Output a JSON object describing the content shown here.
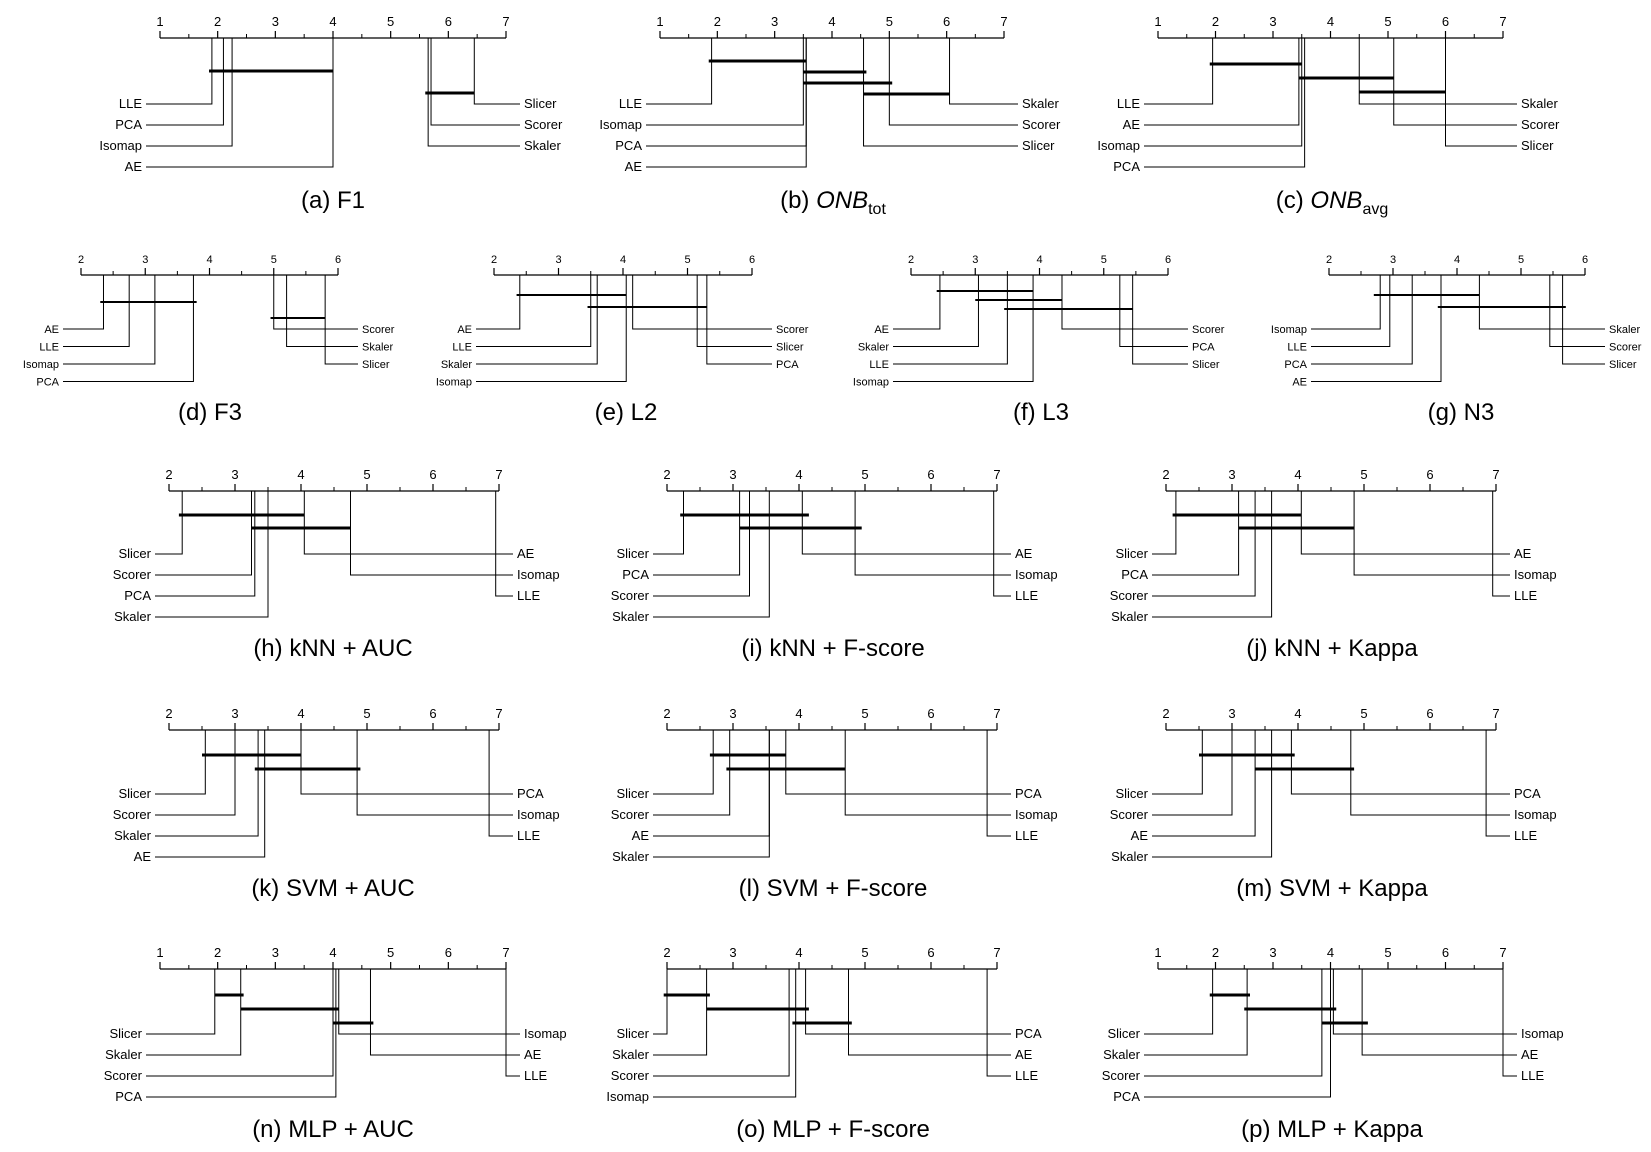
{
  "chart_data": [
    {
      "type": "cd_diagram",
      "caption": "(a) F1",
      "axis": {
        "min": 1,
        "max": 7,
        "ticks": [
          1,
          2,
          3,
          4,
          5,
          6,
          7
        ]
      },
      "left": [
        {
          "name": "LLE",
          "rank": 1.9
        },
        {
          "name": "PCA",
          "rank": 2.1
        },
        {
          "name": "Isomap",
          "rank": 2.25
        },
        {
          "name": "AE",
          "rank": 4.0
        }
      ],
      "right": [
        {
          "name": "Slicer",
          "rank": 6.45
        },
        {
          "name": "Scorer",
          "rank": 5.7
        },
        {
          "name": "Skaler",
          "rank": 5.65
        }
      ],
      "cliques": [
        [
          1.85,
          4.0
        ],
        [
          5.6,
          6.45
        ]
      ]
    },
    {
      "type": "cd_diagram",
      "caption": "(b) ONB",
      "caption_sub": "tot",
      "caption_italic": true,
      "axis": {
        "min": 1,
        "max": 7,
        "ticks": [
          1,
          2,
          3,
          4,
          5,
          6,
          7
        ]
      },
      "left": [
        {
          "name": "LLE",
          "rank": 1.9
        },
        {
          "name": "Isomap",
          "rank": 3.5
        },
        {
          "name": "PCA",
          "rank": 3.55
        },
        {
          "name": "AE",
          "rank": 3.55
        }
      ],
      "right": [
        {
          "name": "Skaler",
          "rank": 6.05
        },
        {
          "name": "Scorer",
          "rank": 5.0
        },
        {
          "name": "Slicer",
          "rank": 4.55
        }
      ],
      "cliques": [
        [
          1.85,
          3.55
        ],
        [
          3.5,
          4.6
        ],
        [
          3.5,
          5.05
        ],
        [
          4.55,
          6.05
        ]
      ]
    },
    {
      "type": "cd_diagram",
      "caption": "(c) ONB",
      "caption_sub": "avg",
      "caption_italic": true,
      "axis": {
        "min": 1,
        "max": 7,
        "ticks": [
          1,
          2,
          3,
          4,
          5,
          6,
          7
        ]
      },
      "left": [
        {
          "name": "LLE",
          "rank": 1.95
        },
        {
          "name": "AE",
          "rank": 3.45
        },
        {
          "name": "Isomap",
          "rank": 3.5
        },
        {
          "name": "PCA",
          "rank": 3.55
        }
      ],
      "right": [
        {
          "name": "Skaler",
          "rank": 4.5
        },
        {
          "name": "Scorer",
          "rank": 5.1
        },
        {
          "name": "Slicer",
          "rank": 6.0
        }
      ],
      "cliques": [
        [
          1.9,
          3.5
        ],
        [
          3.45,
          5.1
        ],
        [
          4.5,
          6.0
        ]
      ]
    },
    {
      "type": "cd_diagram",
      "caption": "(d) F3",
      "axis": {
        "min": 2,
        "max": 6,
        "ticks": [
          2,
          3,
          4,
          5,
          6
        ]
      },
      "left": [
        {
          "name": "AE",
          "rank": 2.35
        },
        {
          "name": "LLE",
          "rank": 2.75
        },
        {
          "name": "Isomap",
          "rank": 3.15
        },
        {
          "name": "PCA",
          "rank": 3.75
        }
      ],
      "right": [
        {
          "name": "Scorer",
          "rank": 5.0
        },
        {
          "name": "Skaler",
          "rank": 5.2
        },
        {
          "name": "Slicer",
          "rank": 5.8
        }
      ],
      "cliques": [
        [
          2.3,
          3.8
        ],
        [
          4.95,
          5.8
        ]
      ]
    },
    {
      "type": "cd_diagram",
      "caption": "(e) L2",
      "axis": {
        "min": 2,
        "max": 6,
        "ticks": [
          2,
          3,
          4,
          5,
          6
        ]
      },
      "left": [
        {
          "name": "AE",
          "rank": 2.4
        },
        {
          "name": "LLE",
          "rank": 3.5
        },
        {
          "name": "Skaler",
          "rank": 3.6
        },
        {
          "name": "Isomap",
          "rank": 4.05
        }
      ],
      "right": [
        {
          "name": "Scorer",
          "rank": 4.15
        },
        {
          "name": "Slicer",
          "rank": 5.15
        },
        {
          "name": "PCA",
          "rank": 5.3
        }
      ],
      "cliques": [
        [
          2.35,
          4.05
        ],
        [
          3.45,
          5.3
        ]
      ]
    },
    {
      "type": "cd_diagram",
      "caption": "(f) L3",
      "axis": {
        "min": 2,
        "max": 6,
        "ticks": [
          2,
          3,
          4,
          5,
          6
        ]
      },
      "left": [
        {
          "name": "AE",
          "rank": 2.45
        },
        {
          "name": "Skaler",
          "rank": 3.05
        },
        {
          "name": "LLE",
          "rank": 3.5
        },
        {
          "name": "Isomap",
          "rank": 3.9
        }
      ],
      "right": [
        {
          "name": "Scorer",
          "rank": 4.35
        },
        {
          "name": "PCA",
          "rank": 5.25
        },
        {
          "name": "Slicer",
          "rank": 5.45
        }
      ],
      "cliques": [
        [
          2.4,
          3.9
        ],
        [
          3.0,
          4.35
        ],
        [
          3.45,
          5.45
        ]
      ]
    },
    {
      "type": "cd_diagram",
      "caption": "(g) N3",
      "axis": {
        "min": 2,
        "max": 6,
        "ticks": [
          2,
          3,
          4,
          5,
          6
        ]
      },
      "left": [
        {
          "name": "Isomap",
          "rank": 2.8
        },
        {
          "name": "LLE",
          "rank": 2.95
        },
        {
          "name": "PCA",
          "rank": 3.3
        },
        {
          "name": "AE",
          "rank": 3.75
        }
      ],
      "right": [
        {
          "name": "Skaler",
          "rank": 4.35
        },
        {
          "name": "Scorer",
          "rank": 5.45
        },
        {
          "name": "Slicer",
          "rank": 5.65
        }
      ],
      "cliques": [
        [
          2.7,
          4.35
        ],
        [
          3.7,
          5.7
        ]
      ]
    },
    {
      "type": "cd_diagram",
      "caption": "(h) kNN + AUC",
      "axis": {
        "min": 2,
        "max": 7,
        "ticks": [
          2,
          3,
          4,
          5,
          6,
          7
        ]
      },
      "left": [
        {
          "name": "Slicer",
          "rank": 2.2
        },
        {
          "name": "Scorer",
          "rank": 3.25
        },
        {
          "name": "PCA",
          "rank": 3.3
        },
        {
          "name": "Skaler",
          "rank": 3.5
        }
      ],
      "right": [
        {
          "name": "AE",
          "rank": 4.05
        },
        {
          "name": "Isomap",
          "rank": 4.75
        },
        {
          "name": "LLE",
          "rank": 6.95
        }
      ],
      "cliques": [
        [
          2.15,
          4.05
        ],
        [
          3.25,
          4.75
        ]
      ]
    },
    {
      "type": "cd_diagram",
      "caption": "(i) kNN + F-score",
      "axis": {
        "min": 2,
        "max": 7,
        "ticks": [
          2,
          3,
          4,
          5,
          6,
          7
        ]
      },
      "left": [
        {
          "name": "Slicer",
          "rank": 2.25
        },
        {
          "name": "PCA",
          "rank": 3.1
        },
        {
          "name": "Scorer",
          "rank": 3.25
        },
        {
          "name": "Skaler",
          "rank": 3.55
        }
      ],
      "right": [
        {
          "name": "AE",
          "rank": 4.05
        },
        {
          "name": "Isomap",
          "rank": 4.85
        },
        {
          "name": "LLE",
          "rank": 6.95
        }
      ],
      "cliques": [
        [
          2.2,
          4.15
        ],
        [
          3.1,
          4.95
        ]
      ]
    },
    {
      "type": "cd_diagram",
      "caption": "(j) kNN + Kappa",
      "axis": {
        "min": 2,
        "max": 7,
        "ticks": [
          2,
          3,
          4,
          5,
          6,
          7
        ]
      },
      "left": [
        {
          "name": "Slicer",
          "rank": 2.15
        },
        {
          "name": "PCA",
          "rank": 3.1
        },
        {
          "name": "Scorer",
          "rank": 3.35
        },
        {
          "name": "Skaler",
          "rank": 3.6
        }
      ],
      "right": [
        {
          "name": "AE",
          "rank": 4.05
        },
        {
          "name": "Isomap",
          "rank": 4.85
        },
        {
          "name": "LLE",
          "rank": 6.95
        }
      ],
      "cliques": [
        [
          2.1,
          4.05
        ],
        [
          3.1,
          4.85
        ]
      ]
    },
    {
      "type": "cd_diagram",
      "caption": "(k) SVM + AUC",
      "axis": {
        "min": 2,
        "max": 7,
        "ticks": [
          2,
          3,
          4,
          5,
          6,
          7
        ]
      },
      "left": [
        {
          "name": "Slicer",
          "rank": 2.55
        },
        {
          "name": "Scorer",
          "rank": 3.0
        },
        {
          "name": "Skaler",
          "rank": 3.35
        },
        {
          "name": "AE",
          "rank": 3.45
        }
      ],
      "right": [
        {
          "name": "PCA",
          "rank": 4.0
        },
        {
          "name": "Isomap",
          "rank": 4.85
        },
        {
          "name": "LLE",
          "rank": 6.85
        }
      ],
      "cliques": [
        [
          2.5,
          4.0
        ],
        [
          3.3,
          4.9
        ]
      ]
    },
    {
      "type": "cd_diagram",
      "caption": "(l) SVM + F-score",
      "axis": {
        "min": 2,
        "max": 7,
        "ticks": [
          2,
          3,
          4,
          5,
          6,
          7
        ]
      },
      "left": [
        {
          "name": "Slicer",
          "rank": 2.7
        },
        {
          "name": "Scorer",
          "rank": 2.95
        },
        {
          "name": "AE",
          "rank": 3.55
        },
        {
          "name": "Skaler",
          "rank": 3.55
        }
      ],
      "right": [
        {
          "name": "PCA",
          "rank": 3.8
        },
        {
          "name": "Isomap",
          "rank": 4.7
        },
        {
          "name": "LLE",
          "rank": 6.85
        }
      ],
      "cliques": [
        [
          2.65,
          3.8
        ],
        [
          2.9,
          4.7
        ]
      ]
    },
    {
      "type": "cd_diagram",
      "caption": "(m) SVM + Kappa",
      "axis": {
        "min": 2,
        "max": 7,
        "ticks": [
          2,
          3,
          4,
          5,
          6,
          7
        ]
      },
      "left": [
        {
          "name": "Slicer",
          "rank": 2.55
        },
        {
          "name": "Scorer",
          "rank": 3.0
        },
        {
          "name": "AE",
          "rank": 3.35
        },
        {
          "name": "Skaler",
          "rank": 3.6
        }
      ],
      "right": [
        {
          "name": "PCA",
          "rank": 3.9
        },
        {
          "name": "Isomap",
          "rank": 4.8
        },
        {
          "name": "LLE",
          "rank": 6.85
        }
      ],
      "cliques": [
        [
          2.5,
          3.95
        ],
        [
          3.35,
          4.85
        ]
      ]
    },
    {
      "type": "cd_diagram",
      "caption": "(n) MLP + AUC",
      "axis": {
        "min": 1,
        "max": 7,
        "ticks": [
          1,
          2,
          3,
          4,
          5,
          6,
          7
        ]
      },
      "left": [
        {
          "name": "Slicer",
          "rank": 1.95
        },
        {
          "name": "Skaler",
          "rank": 2.4
        },
        {
          "name": "Scorer",
          "rank": 4.0
        },
        {
          "name": "PCA",
          "rank": 4.05
        }
      ],
      "right": [
        {
          "name": "Isomap",
          "rank": 4.1
        },
        {
          "name": "AE",
          "rank": 4.65
        },
        {
          "name": "LLE",
          "rank": 7.0
        }
      ],
      "cliques": [
        [
          1.95,
          2.45
        ],
        [
          2.4,
          4.1
        ],
        [
          4.0,
          4.7
        ]
      ]
    },
    {
      "type": "cd_diagram",
      "caption": "(o) MLP + F-score",
      "axis": {
        "min": 2,
        "max": 7,
        "ticks": [
          2,
          3,
          4,
          5,
          6,
          7
        ]
      },
      "left": [
        {
          "name": "Slicer",
          "rank": 2.0
        },
        {
          "name": "Skaler",
          "rank": 2.6
        },
        {
          "name": "Scorer",
          "rank": 3.85
        },
        {
          "name": "Isomap",
          "rank": 3.95
        }
      ],
      "right": [
        {
          "name": "PCA",
          "rank": 4.1
        },
        {
          "name": "AE",
          "rank": 4.75
        },
        {
          "name": "LLE",
          "rank": 6.85
        }
      ],
      "cliques": [
        [
          1.95,
          2.65
        ],
        [
          2.6,
          4.15
        ],
        [
          3.9,
          4.8
        ]
      ]
    },
    {
      "type": "cd_diagram",
      "caption": "(p) MLP + Kappa",
      "axis": {
        "min": 1,
        "max": 7,
        "ticks": [
          1,
          2,
          3,
          4,
          5,
          6,
          7
        ]
      },
      "left": [
        {
          "name": "Slicer",
          "rank": 1.95
        },
        {
          "name": "Skaler",
          "rank": 2.55
        },
        {
          "name": "Scorer",
          "rank": 3.85
        },
        {
          "name": "PCA",
          "rank": 4.0
        }
      ],
      "right": [
        {
          "name": "Isomap",
          "rank": 4.05
        },
        {
          "name": "AE",
          "rank": 4.55
        },
        {
          "name": "LLE",
          "rank": 7.0
        }
      ],
      "cliques": [
        [
          1.9,
          2.6
        ],
        [
          2.5,
          4.1
        ],
        [
          3.85,
          4.65
        ]
      ]
    }
  ]
}
